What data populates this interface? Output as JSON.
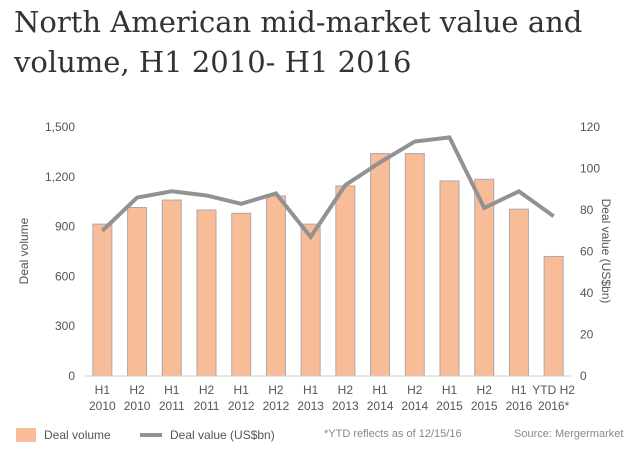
{
  "chart_data": {
    "type": "bar+line",
    "title": "North American mid-market value and volume, H1 2010- H1 2016",
    "categories": [
      "H1 2010",
      "H2 2010",
      "H1 2011",
      "H2 2011",
      "H1 2012",
      "H2 2012",
      "H1 2013",
      "H2 2013",
      "H1 2014",
      "H2 2014",
      "H1 2015",
      "H2 2015",
      "H1 2016",
      "YTD H2 2016*"
    ],
    "category_lines": [
      [
        "H1",
        "2010"
      ],
      [
        "H2",
        "2010"
      ],
      [
        "H1",
        "2011"
      ],
      [
        "H2",
        "2011"
      ],
      [
        "H1",
        "2012"
      ],
      [
        "H2",
        "2012"
      ],
      [
        "H1",
        "2013"
      ],
      [
        "H2",
        "2013"
      ],
      [
        "H1",
        "2014"
      ],
      [
        "H2",
        "2014"
      ],
      [
        "H1",
        "2015"
      ],
      [
        "H2",
        "2015"
      ],
      [
        "H1",
        "2016"
      ],
      [
        "YTD H2",
        "2016*"
      ]
    ],
    "series": [
      {
        "name": "Deal volume",
        "type": "bar",
        "axis": "left",
        "color": "#f9bc98",
        "values": [
          915,
          1015,
          1060,
          1000,
          980,
          1085,
          915,
          1145,
          1340,
          1340,
          1175,
          1185,
          1005,
          720
        ]
      },
      {
        "name": "Deal value (US$bn)",
        "type": "line",
        "axis": "right",
        "color": "#929292",
        "values": [
          70,
          86,
          89,
          87,
          83,
          88,
          67,
          92,
          103,
          113,
          115,
          81,
          89,
          77
        ]
      }
    ],
    "ylabel": "Deal volume",
    "ylim": [
      0,
      1500
    ],
    "yticks": [
      "0",
      "300",
      "600",
      "900",
      "1,200",
      "1,500"
    ],
    "y2label": "Deal value (US$bn)",
    "y2lim": [
      0,
      120
    ],
    "y2ticks": [
      "0",
      "20",
      "40",
      "60",
      "80",
      "100",
      "120"
    ],
    "grid": false,
    "legend_position": "bottom-left"
  },
  "footnote": "*YTD reflects as of 12/15/16",
  "source": "Source: Mergermarket"
}
